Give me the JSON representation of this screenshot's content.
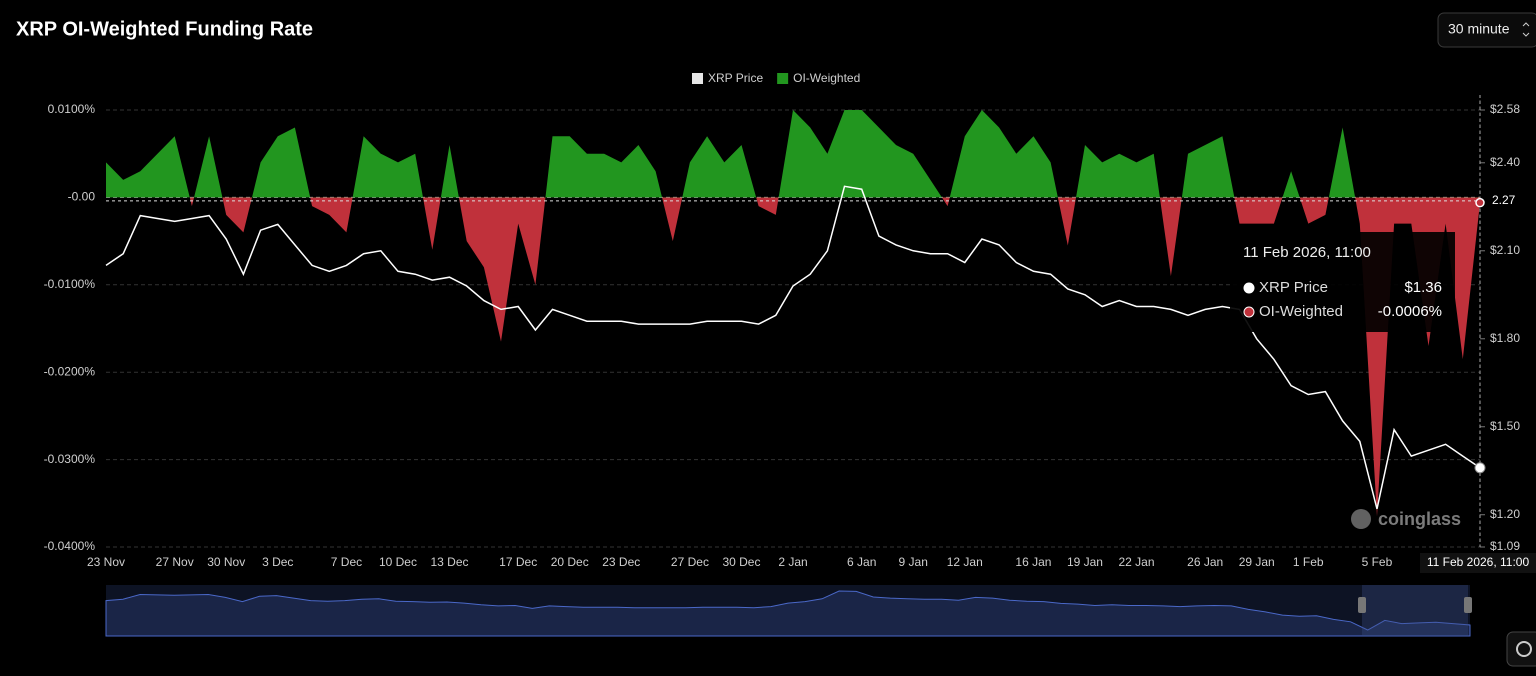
{
  "chart_data": {
    "type": "funding",
    "title": "XRP OI-Weighted Funding Rate",
    "interval": "30 minute",
    "watermark": "coinglass",
    "categories": [
      "23 Nov",
      null,
      null,
      null,
      "27 Nov",
      null,
      null,
      "30 Nov",
      null,
      null,
      "3 Dec",
      null,
      null,
      null,
      "7 Dec",
      null,
      null,
      "10 Dec",
      null,
      null,
      "13 Dec",
      null,
      null,
      null,
      "17 Dec",
      null,
      null,
      "20 Dec",
      null,
      null,
      "23 Dec",
      null,
      null,
      null,
      "27 Dec",
      null,
      null,
      "30 Dec",
      null,
      null,
      "2 Jan",
      null,
      null,
      null,
      "6 Jan",
      null,
      null,
      "9 Jan",
      null,
      null,
      "12 Jan",
      null,
      null,
      null,
      "16 Jan",
      null,
      null,
      "19 Jan",
      null,
      null,
      "22 Jan",
      null,
      null,
      null,
      "26 Jan",
      null,
      null,
      "29 Jan",
      null,
      null,
      "1 Feb",
      null,
      null,
      null,
      "5 Feb",
      null,
      null,
      null,
      null,
      null,
      null
    ],
    "series": [
      {
        "name": "XRP Price",
        "color": "#ffffff",
        "axis": "y2",
        "values": [
          2.05,
          2.09,
          2.22,
          2.21,
          2.2,
          2.21,
          2.22,
          2.14,
          2.02,
          2.17,
          2.19,
          2.12,
          2.05,
          2.03,
          2.05,
          2.09,
          2.1,
          2.03,
          2.02,
          2.0,
          2.01,
          1.98,
          1.93,
          1.9,
          1.91,
          1.83,
          1.9,
          1.88,
          1.86,
          1.86,
          1.86,
          1.85,
          1.85,
          1.85,
          1.85,
          1.86,
          1.86,
          1.86,
          1.85,
          1.88,
          1.98,
          2.02,
          2.1,
          2.32,
          2.31,
          2.15,
          2.12,
          2.1,
          2.09,
          2.09,
          2.06,
          2.14,
          2.12,
          2.06,
          2.03,
          2.02,
          1.97,
          1.95,
          1.91,
          1.93,
          1.91,
          1.91,
          1.9,
          1.88,
          1.9,
          1.91,
          1.9,
          1.8,
          1.73,
          1.64,
          1.61,
          1.62,
          1.52,
          1.45,
          1.22,
          1.49,
          1.4,
          1.42,
          1.44,
          1.4,
          1.36
        ]
      },
      {
        "name": "OI-Weighted",
        "color": "#22961f",
        "negative_color": "#c0313b",
        "values": [
          0.004,
          0.002,
          0.003,
          0.005,
          0.007,
          -0.001,
          0.007,
          -0.002,
          -0.004,
          0.004,
          0.007,
          0.008,
          -0.001,
          -0.002,
          -0.004,
          0.007,
          0.005,
          0.004,
          0.005,
          -0.006,
          0.006,
          -0.005,
          -0.008,
          -0.0165,
          -0.003,
          -0.01,
          0.007,
          0.007,
          0.005,
          0.005,
          0.004,
          0.006,
          0.003,
          -0.005,
          0.004,
          0.007,
          0.004,
          0.006,
          -0.001,
          -0.002,
          0.01,
          0.008,
          0.005,
          0.01,
          0.01,
          0.008,
          0.006,
          0.005,
          0.002,
          -0.001,
          0.007,
          0.01,
          0.008,
          0.005,
          0.007,
          0.004,
          -0.0055,
          0.006,
          0.004,
          0.005,
          0.004,
          0.005,
          -0.009,
          0.005,
          0.006,
          0.007,
          -0.003,
          -0.003,
          -0.003,
          0.003,
          -0.003,
          -0.002,
          0.008,
          -0.003,
          -0.0365,
          -0.003,
          -0.003,
          -0.017,
          -0.003,
          -0.0185,
          -0.0006
        ]
      }
    ],
    "ylim": [
      -0.04,
      0.01
    ],
    "yticks": [
      {
        "value": 0.01,
        "label": "0.0100%"
      },
      {
        "value": 0,
        "label": "-0.00"
      },
      {
        "value": -0.01,
        "label": "-0.0100%"
      },
      {
        "value": -0.02,
        "label": "-0.0200%"
      },
      {
        "value": -0.03,
        "label": "-0.0300%"
      },
      {
        "value": -0.04,
        "label": "-0.0400%"
      }
    ],
    "y2lim": [
      1.09,
      2.58
    ],
    "y2ticks": [
      {
        "value": 2.58,
        "label": "$2.58"
      },
      {
        "value": 2.4,
        "label": "$2.40"
      },
      {
        "value": 2.1,
        "label": "$2.10"
      },
      {
        "value": 1.8,
        "label": "$1.80"
      },
      {
        "value": 1.5,
        "label": "$1.50"
      },
      {
        "value": 1.2,
        "label": "$1.20"
      },
      {
        "value": 1.09,
        "label": "$1.09"
      }
    ],
    "grid": true,
    "legend": "top",
    "crosshair": {
      "y2": 2.27,
      "x_label": "11 Feb 2026, 11:00"
    },
    "tooltip": {
      "title": "11 Feb 2026, 11:00",
      "rows": [
        {
          "name": "XRP Price",
          "label": "$1.36"
        },
        {
          "name": "OI-Weighted",
          "label": "-0.0006%"
        }
      ]
    }
  }
}
